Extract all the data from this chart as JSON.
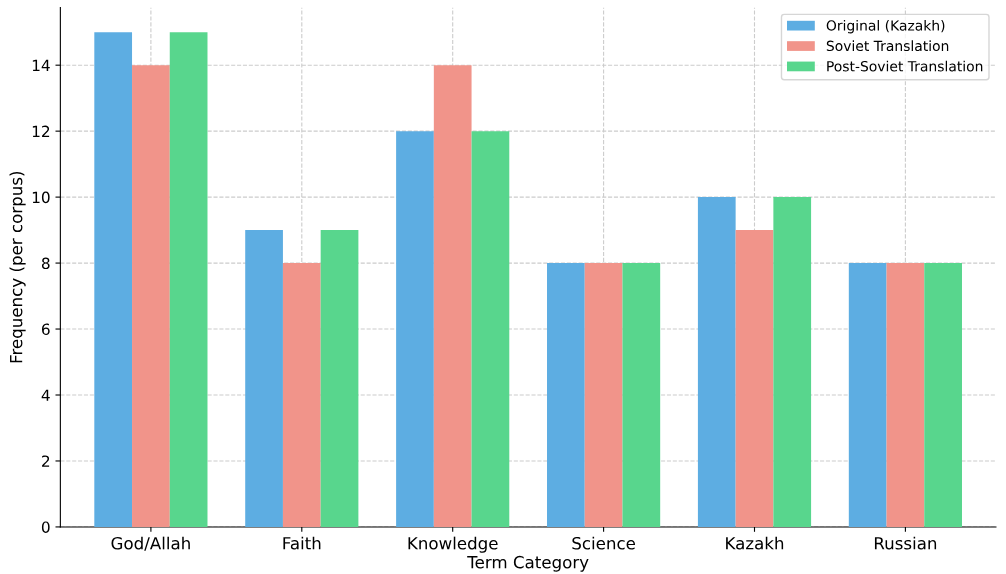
{
  "chart_data": {
    "type": "bar",
    "xlabel": "Term Category",
    "ylabel": "Frequency (per corpus)",
    "categories": [
      "God/Allah",
      "Faith",
      "Knowledge",
      "Science",
      "Kazakh",
      "Russian"
    ],
    "series": [
      {
        "name": "Original (Kazakh)",
        "color": "#5dade2",
        "values": [
          15,
          9,
          12,
          8,
          10,
          8
        ]
      },
      {
        "name": "Soviet Translation",
        "color": "#f1948a",
        "values": [
          14,
          8,
          14,
          8,
          9,
          8
        ]
      },
      {
        "name": "Post-Soviet Translation",
        "color": "#58d68d",
        "values": [
          15,
          9,
          12,
          8,
          10,
          8
        ]
      }
    ],
    "ylim": [
      0,
      15.75
    ],
    "yticks": [
      0,
      2,
      4,
      6,
      8,
      10,
      12,
      14
    ],
    "grid": true,
    "legend": "top right"
  }
}
